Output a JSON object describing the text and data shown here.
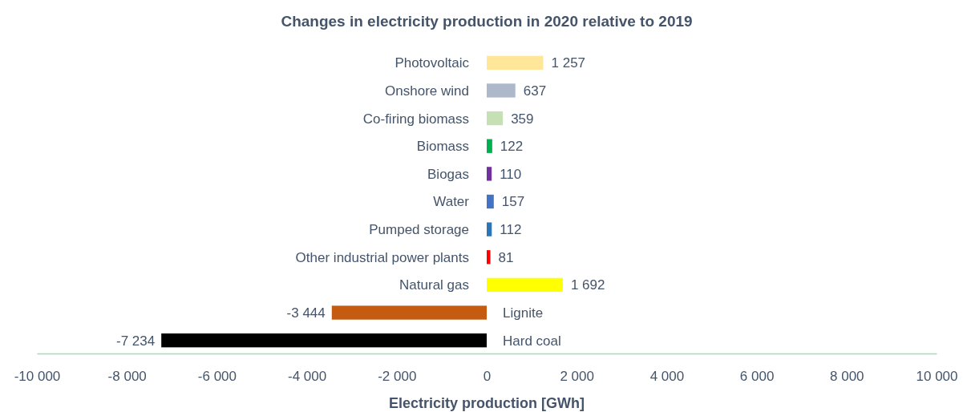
{
  "chart_data": {
    "type": "bar",
    "orientation": "horizontal",
    "title": "Changes in electricity production in 2020 relative to 2019",
    "xlabel": "Electricity production [GWh]",
    "categories": [
      "Photovoltaic",
      "Onshore wind",
      "Co-firing biomass",
      "Biomass",
      "Biogas",
      "Water",
      "Pumped storage",
      "Other industrial power plants",
      "Natural gas",
      "Lignite",
      "Hard coal"
    ],
    "values": [
      1257,
      637,
      359,
      122,
      110,
      157,
      112,
      81,
      1692,
      -3444,
      -7234
    ],
    "colors": [
      "#ffe699",
      "#adb9ca",
      "#c5e0b4",
      "#00b050",
      "#7030a0",
      "#4472c4",
      "#2e75b6",
      "#ff0000",
      "#ffff00",
      "#c55a11",
      "#000000"
    ],
    "value_labels": [
      "1 257",
      "637",
      "359",
      "122",
      "110",
      "157",
      "112",
      "81",
      "1 692",
      "-3 444",
      "-7 234"
    ],
    "xlim": [
      -10000,
      10000
    ],
    "xticks": [
      {
        "value": -10000,
        "label": "-10 000"
      },
      {
        "value": -8000,
        "label": "-8 000"
      },
      {
        "value": -6000,
        "label": "-6 000"
      },
      {
        "value": -4000,
        "label": "-4 000"
      },
      {
        "value": -2000,
        "label": "-2 000"
      },
      0,
      {
        "value": 2000,
        "label": "2 000"
      },
      {
        "value": 4000,
        "label": "4 000"
      },
      {
        "value": 6000,
        "label": "6 000"
      },
      {
        "value": 8000,
        "label": "8 000"
      },
      {
        "value": 10000,
        "label": "10 000"
      }
    ]
  }
}
